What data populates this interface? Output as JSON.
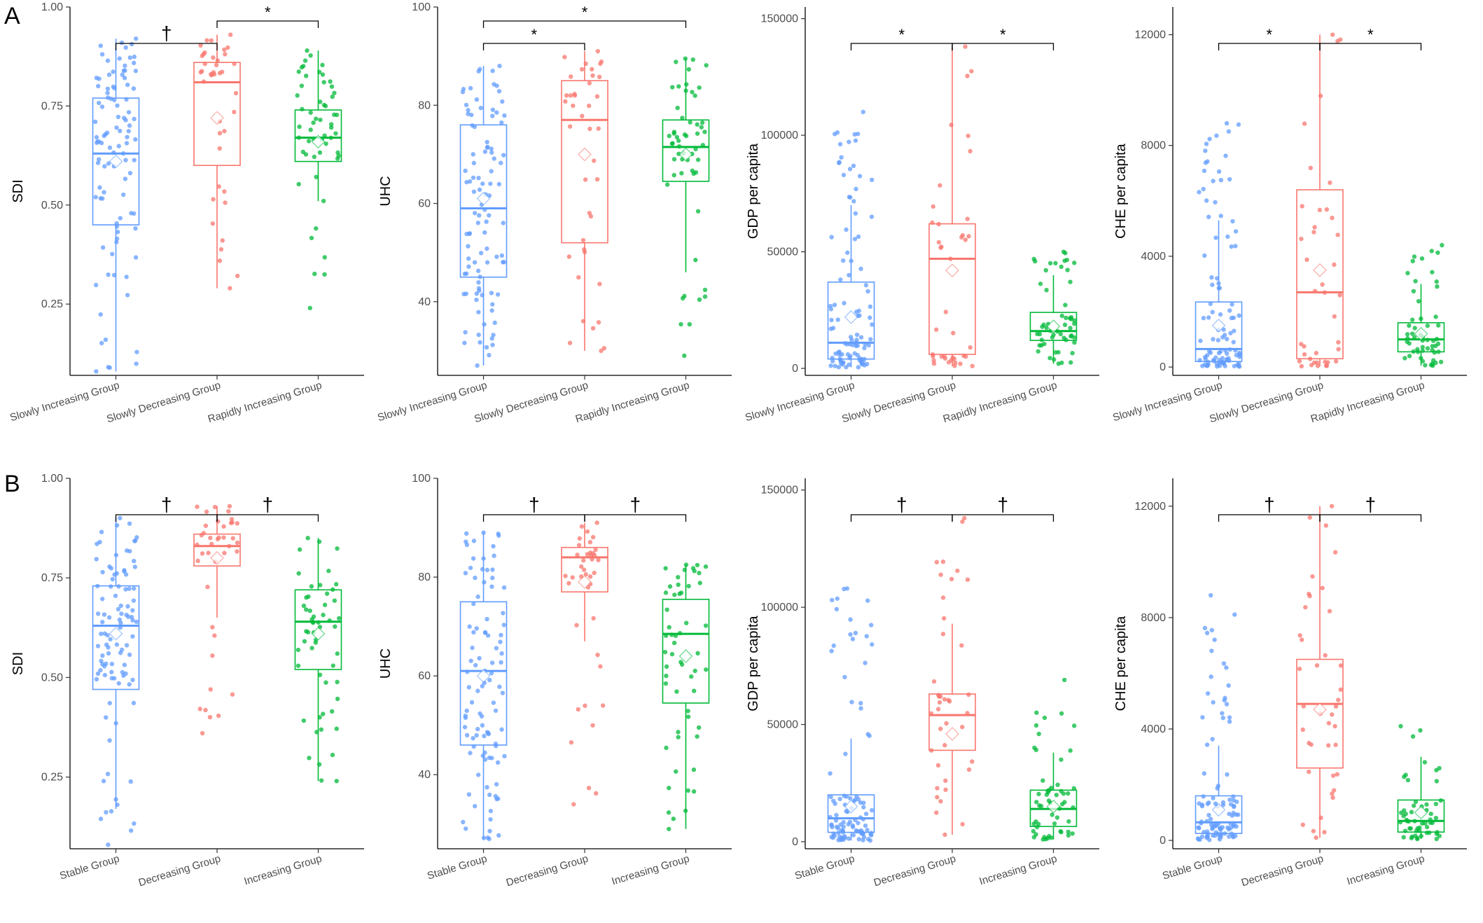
{
  "figure": {
    "colors": {
      "blue": "#619CFF",
      "red": "#F8766D",
      "green": "#00BA38"
    },
    "panels": [
      {
        "letter": "A",
        "groups": [
          "Slowly Increasing Group",
          "Slowly Decreasing Group",
          "Rapidly Increasing Group"
        ]
      },
      {
        "letter": "B",
        "groups": [
          "Stable Group",
          "Decreasing Group",
          "Increasing Group"
        ]
      }
    ]
  },
  "chart_data": [
    {
      "type": "box",
      "panel": "A",
      "ylabel": "SDI",
      "ylim": [
        0.07,
        1.0
      ],
      "yticks": [
        0.25,
        0.5,
        0.75,
        1.0
      ],
      "ytick_labels": [
        "0.25",
        "0.50",
        "0.75",
        "1.00"
      ],
      "categories": [
        "Slowly Increasing Group",
        "Slowly Decreasing Group",
        "Rapidly Increasing Group"
      ],
      "boxes": [
        {
          "q1": 0.45,
          "median": 0.63,
          "q3": 0.77,
          "whisker_low": 0.08,
          "whisker_high": 0.92,
          "mean": 0.61,
          "n": 100,
          "min": 0.08,
          "max": 0.92
        },
        {
          "q1": 0.6,
          "median": 0.81,
          "q3": 0.86,
          "whisker_low": 0.29,
          "whisker_high": 0.93,
          "mean": 0.72,
          "n": 40,
          "min": 0.29,
          "max": 0.93
        },
        {
          "q1": 0.61,
          "median": 0.67,
          "q3": 0.74,
          "whisker_low": 0.51,
          "whisker_high": 0.89,
          "mean": 0.66,
          "n": 55,
          "min": 0.24,
          "max": 0.89
        }
      ],
      "brackets": [
        {
          "from": 0,
          "to": 1,
          "label": "†",
          "level": 1
        },
        {
          "from": 1,
          "to": 2,
          "label": "*",
          "level": 2
        }
      ]
    },
    {
      "type": "box",
      "panel": "A",
      "ylabel": "UHC",
      "ylim": [
        25,
        100
      ],
      "yticks": [
        40,
        60,
        80,
        100
      ],
      "ytick_labels": [
        "40",
        "60",
        "80",
        "100"
      ],
      "categories": [
        "Slowly Increasing Group",
        "Slowly Decreasing Group",
        "Rapidly Increasing Group"
      ],
      "boxes": [
        {
          "q1": 45,
          "median": 59,
          "q3": 76,
          "whisker_low": 27,
          "whisker_high": 88,
          "mean": 61,
          "n": 100,
          "min": 27,
          "max": 88
        },
        {
          "q1": 52,
          "median": 77,
          "q3": 85,
          "whisker_low": 30,
          "whisker_high": 91,
          "mean": 70,
          "n": 40,
          "min": 30,
          "max": 91
        },
        {
          "q1": 64.5,
          "median": 71.5,
          "q3": 77,
          "whisker_low": 46,
          "whisker_high": 89.5,
          "mean": 70,
          "n": 55,
          "min": 29,
          "max": 89.5
        }
      ],
      "brackets": [
        {
          "from": 0,
          "to": 1,
          "label": "*",
          "level": 1
        },
        {
          "from": 0,
          "to": 2,
          "label": "*",
          "level": 2
        }
      ]
    },
    {
      "type": "box",
      "panel": "A",
      "ylabel": "GDP per capita",
      "ylim": [
        -3000,
        155000
      ],
      "yticks": [
        0,
        50000,
        100000,
        150000
      ],
      "ytick_labels": [
        "0",
        "50000",
        "100000",
        "150000"
      ],
      "categories": [
        "Slowly Increasing Group",
        "Slowly Decreasing Group",
        "Rapidly Increasing Group"
      ],
      "boxes": [
        {
          "q1": 4000,
          "median": 11000,
          "q3": 37000,
          "whisker_low": 500,
          "whisker_high": 70000,
          "mean": 22000,
          "n": 100,
          "min": 500,
          "max": 110000
        },
        {
          "q1": 6000,
          "median": 47000,
          "q3": 62000,
          "whisker_low": 1000,
          "whisker_high": 138000,
          "mean": 42000,
          "n": 40,
          "min": 1000,
          "max": 138000
        },
        {
          "q1": 12000,
          "median": 16000,
          "q3": 24000,
          "whisker_low": 2000,
          "whisker_high": 40000,
          "mean": 18000,
          "n": 55,
          "min": 2000,
          "max": 50000
        }
      ],
      "brackets": [
        {
          "from": 0,
          "to": 1,
          "label": "*",
          "level": 1
        },
        {
          "from": 1,
          "to": 2,
          "label": "*",
          "level": 1
        }
      ]
    },
    {
      "type": "box",
      "panel": "A",
      "ylabel": "CHE per capita",
      "ylim": [
        -300,
        13000
      ],
      "yticks": [
        0,
        4000,
        8000,
        12000
      ],
      "ytick_labels": [
        "0",
        "4000",
        "8000",
        "12000"
      ],
      "categories": [
        "Slowly Increasing Group",
        "Slowly Decreasing Group",
        "Rapidly Increasing Group"
      ],
      "boxes": [
        {
          "q1": 200,
          "median": 650,
          "q3": 2350,
          "whisker_low": 20,
          "whisker_high": 5300,
          "mean": 1500,
          "n": 100,
          "min": 20,
          "max": 8800
        },
        {
          "q1": 300,
          "median": 2700,
          "q3": 6400,
          "whisker_low": 30,
          "whisker_high": 12000,
          "mean": 3500,
          "n": 40,
          "min": 30,
          "max": 12000
        },
        {
          "q1": 550,
          "median": 1000,
          "q3": 1600,
          "whisker_low": 50,
          "whisker_high": 3000,
          "mean": 1200,
          "n": 55,
          "min": 50,
          "max": 4400
        }
      ],
      "brackets": [
        {
          "from": 0,
          "to": 1,
          "label": "*",
          "level": 1
        },
        {
          "from": 1,
          "to": 2,
          "label": "*",
          "level": 1
        }
      ]
    },
    {
      "type": "box",
      "panel": "B",
      "ylabel": "SDI",
      "ylim": [
        0.07,
        1.0
      ],
      "yticks": [
        0.25,
        0.5,
        0.75,
        1.0
      ],
      "ytick_labels": [
        "0.25",
        "0.50",
        "0.75",
        "1.00"
      ],
      "categories": [
        "Stable Group",
        "Decreasing Group",
        "Increasing Group"
      ],
      "boxes": [
        {
          "q1": 0.47,
          "median": 0.63,
          "q3": 0.73,
          "whisker_low": 0.17,
          "whisker_high": 0.9,
          "mean": 0.61,
          "n": 100,
          "min": 0.08,
          "max": 0.9
        },
        {
          "q1": 0.78,
          "median": 0.83,
          "q3": 0.86,
          "whisker_low": 0.65,
          "whisker_high": 0.93,
          "mean": 0.8,
          "n": 40,
          "min": 0.36,
          "max": 0.93
        },
        {
          "q1": 0.52,
          "median": 0.64,
          "q3": 0.72,
          "whisker_low": 0.24,
          "whisker_high": 0.85,
          "mean": 0.61,
          "n": 55,
          "min": 0.24,
          "max": 0.85
        }
      ],
      "brackets": [
        {
          "from": 0,
          "to": 1,
          "label": "†",
          "level": 1
        },
        {
          "from": 1,
          "to": 2,
          "label": "†",
          "level": 1
        }
      ]
    },
    {
      "type": "box",
      "panel": "B",
      "ylabel": "UHC",
      "ylim": [
        25,
        100
      ],
      "yticks": [
        40,
        60,
        80,
        100
      ],
      "ytick_labels": [
        "40",
        "60",
        "80",
        "100"
      ],
      "categories": [
        "Stable Group",
        "Decreasing Group",
        "Increasing Group"
      ],
      "boxes": [
        {
          "q1": 46,
          "median": 61,
          "q3": 75,
          "whisker_low": 27,
          "whisker_high": 89,
          "mean": 60,
          "n": 100,
          "min": 27,
          "max": 89
        },
        {
          "q1": 77,
          "median": 84,
          "q3": 86,
          "whisker_low": 67,
          "whisker_high": 91,
          "mean": 79,
          "n": 40,
          "min": 34,
          "max": 91
        },
        {
          "q1": 54.5,
          "median": 68.5,
          "q3": 75.5,
          "whisker_low": 29,
          "whisker_high": 82.5,
          "mean": 64,
          "n": 55,
          "min": 29,
          "max": 82.5
        }
      ],
      "brackets": [
        {
          "from": 0,
          "to": 1,
          "label": "†",
          "level": 1
        },
        {
          "from": 1,
          "to": 2,
          "label": "†",
          "level": 1
        }
      ]
    },
    {
      "type": "box",
      "panel": "B",
      "ylabel": "GDP per capita",
      "ylim": [
        -3000,
        155000
      ],
      "yticks": [
        0,
        50000,
        100000,
        150000
      ],
      "ytick_labels": [
        "0",
        "50000",
        "100000",
        "150000"
      ],
      "categories": [
        "Stable Group",
        "Decreasing Group",
        "Increasing Group"
      ],
      "boxes": [
        {
          "q1": 4000,
          "median": 10000,
          "q3": 20000,
          "whisker_low": 500,
          "whisker_high": 44000,
          "mean": 15000,
          "n": 100,
          "min": 500,
          "max": 108000
        },
        {
          "q1": 39000,
          "median": 54000,
          "q3": 63000,
          "whisker_low": 3000,
          "whisker_high": 93000,
          "mean": 46000,
          "n": 40,
          "min": 3000,
          "max": 138000
        },
        {
          "q1": 6500,
          "median": 14000,
          "q3": 22000,
          "whisker_low": 1000,
          "whisker_high": 38000,
          "mean": 15000,
          "n": 55,
          "min": 1000,
          "max": 69000
        }
      ],
      "brackets": [
        {
          "from": 0,
          "to": 1,
          "label": "†",
          "level": 1
        },
        {
          "from": 1,
          "to": 2,
          "label": "†",
          "level": 1
        }
      ]
    },
    {
      "type": "box",
      "panel": "B",
      "ylabel": "CHE per capita",
      "ylim": [
        -300,
        13000
      ],
      "yticks": [
        0,
        4000,
        8000,
        12000
      ],
      "ytick_labels": [
        "0",
        "4000",
        "8000",
        "12000"
      ],
      "categories": [
        "Stable Group",
        "Decreasing Group",
        "Increasing Group"
      ],
      "boxes": [
        {
          "q1": 250,
          "median": 650,
          "q3": 1600,
          "whisker_low": 20,
          "whisker_high": 3400,
          "mean": 1100,
          "n": 100,
          "min": 20,
          "max": 8800
        },
        {
          "q1": 2600,
          "median": 4900,
          "q3": 6500,
          "whisker_low": 100,
          "whisker_high": 12000,
          "mean": 4700,
          "n": 40,
          "min": 100,
          "max": 12000
        },
        {
          "q1": 300,
          "median": 700,
          "q3": 1450,
          "whisker_low": 50,
          "whisker_high": 3000,
          "mean": 1000,
          "n": 55,
          "min": 50,
          "max": 4100
        }
      ],
      "brackets": [
        {
          "from": 0,
          "to": 1,
          "label": "†",
          "level": 1
        },
        {
          "from": 1,
          "to": 2,
          "label": "†",
          "level": 1
        }
      ]
    }
  ]
}
